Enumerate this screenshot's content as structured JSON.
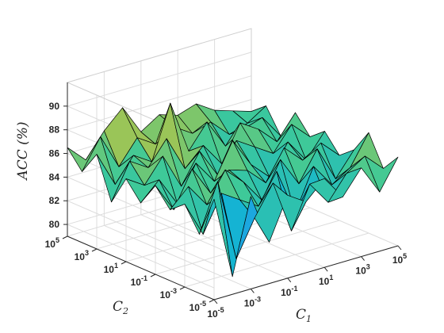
{
  "chart_data": {
    "type": "surface",
    "title": "",
    "zlabel": "ACC(%)",
    "zlabel_display": "ACC (%)",
    "xlabel": "C1",
    "ylabel": "C2",
    "zlim": [
      79,
      92
    ],
    "zticks": [
      80,
      82,
      84,
      86,
      88,
      90
    ],
    "x_exponents": [
      -5,
      -4,
      -3,
      -2,
      -1,
      0,
      1,
      2,
      3,
      4,
      5
    ],
    "y_exponents": [
      -5,
      -4,
      -3,
      -2,
      -1,
      0,
      1,
      2,
      3,
      4,
      5
    ],
    "x_tick_labels": [
      "10-5",
      "10-3",
      "10-1",
      "101",
      "103",
      "105"
    ],
    "y_tick_labels": [
      "10-5",
      "10-3",
      "10-1",
      "101",
      "103",
      "105"
    ],
    "grid": true,
    "colormap": "parula",
    "z_rows_note": "rows indexed by C2 exponent from -5 to 5, columns by C1 exponent from -5 to 5",
    "z": [
      [
        87.5,
        80.5,
        86.8,
        82.5,
        86.0,
        85.0,
        86.5,
        84.5,
        86.5,
        84.0,
        86.5
      ],
      [
        84.0,
        88.0,
        81.0,
        84.0,
        86.5,
        82.0,
        85.5,
        83.5,
        85.5,
        86.5,
        85.0
      ],
      [
        86.0,
        83.0,
        86.0,
        85.0,
        84.0,
        86.5,
        82.5,
        86.0,
        84.0,
        85.0,
        87.5
      ],
      [
        85.0,
        86.5,
        84.5,
        87.0,
        85.5,
        83.5,
        86.5,
        84.0,
        86.5,
        83.5,
        85.5
      ],
      [
        86.5,
        84.0,
        87.0,
        84.5,
        86.0,
        85.5,
        84.0,
        86.5,
        85.0,
        86.0,
        84.5
      ],
      [
        84.5,
        86.0,
        83.5,
        86.5,
        84.5,
        87.5,
        85.0,
        83.5,
        86.0,
        84.0,
        86.0
      ],
      [
        86.0,
        85.0,
        87.0,
        84.0,
        86.5,
        84.0,
        86.5,
        85.5,
        84.5,
        86.5,
        85.0
      ],
      [
        83.5,
        86.5,
        85.5,
        87.5,
        84.5,
        86.0,
        84.0,
        87.0,
        86.0,
        84.5,
        86.5
      ],
      [
        87.0,
        84.0,
        86.0,
        85.0,
        89.5,
        85.0,
        87.0,
        84.5,
        85.5,
        86.0,
        84.0
      ],
      [
        85.0,
        87.5,
        84.5,
        86.5,
        85.5,
        86.5,
        85.5,
        86.0,
        84.5,
        85.0,
        86.0
      ],
      [
        86.5,
        85.0,
        87.0,
        88.5,
        86.0,
        87.0,
        86.5,
        87.0,
        86.0,
        85.5,
        85.0
      ]
    ]
  }
}
